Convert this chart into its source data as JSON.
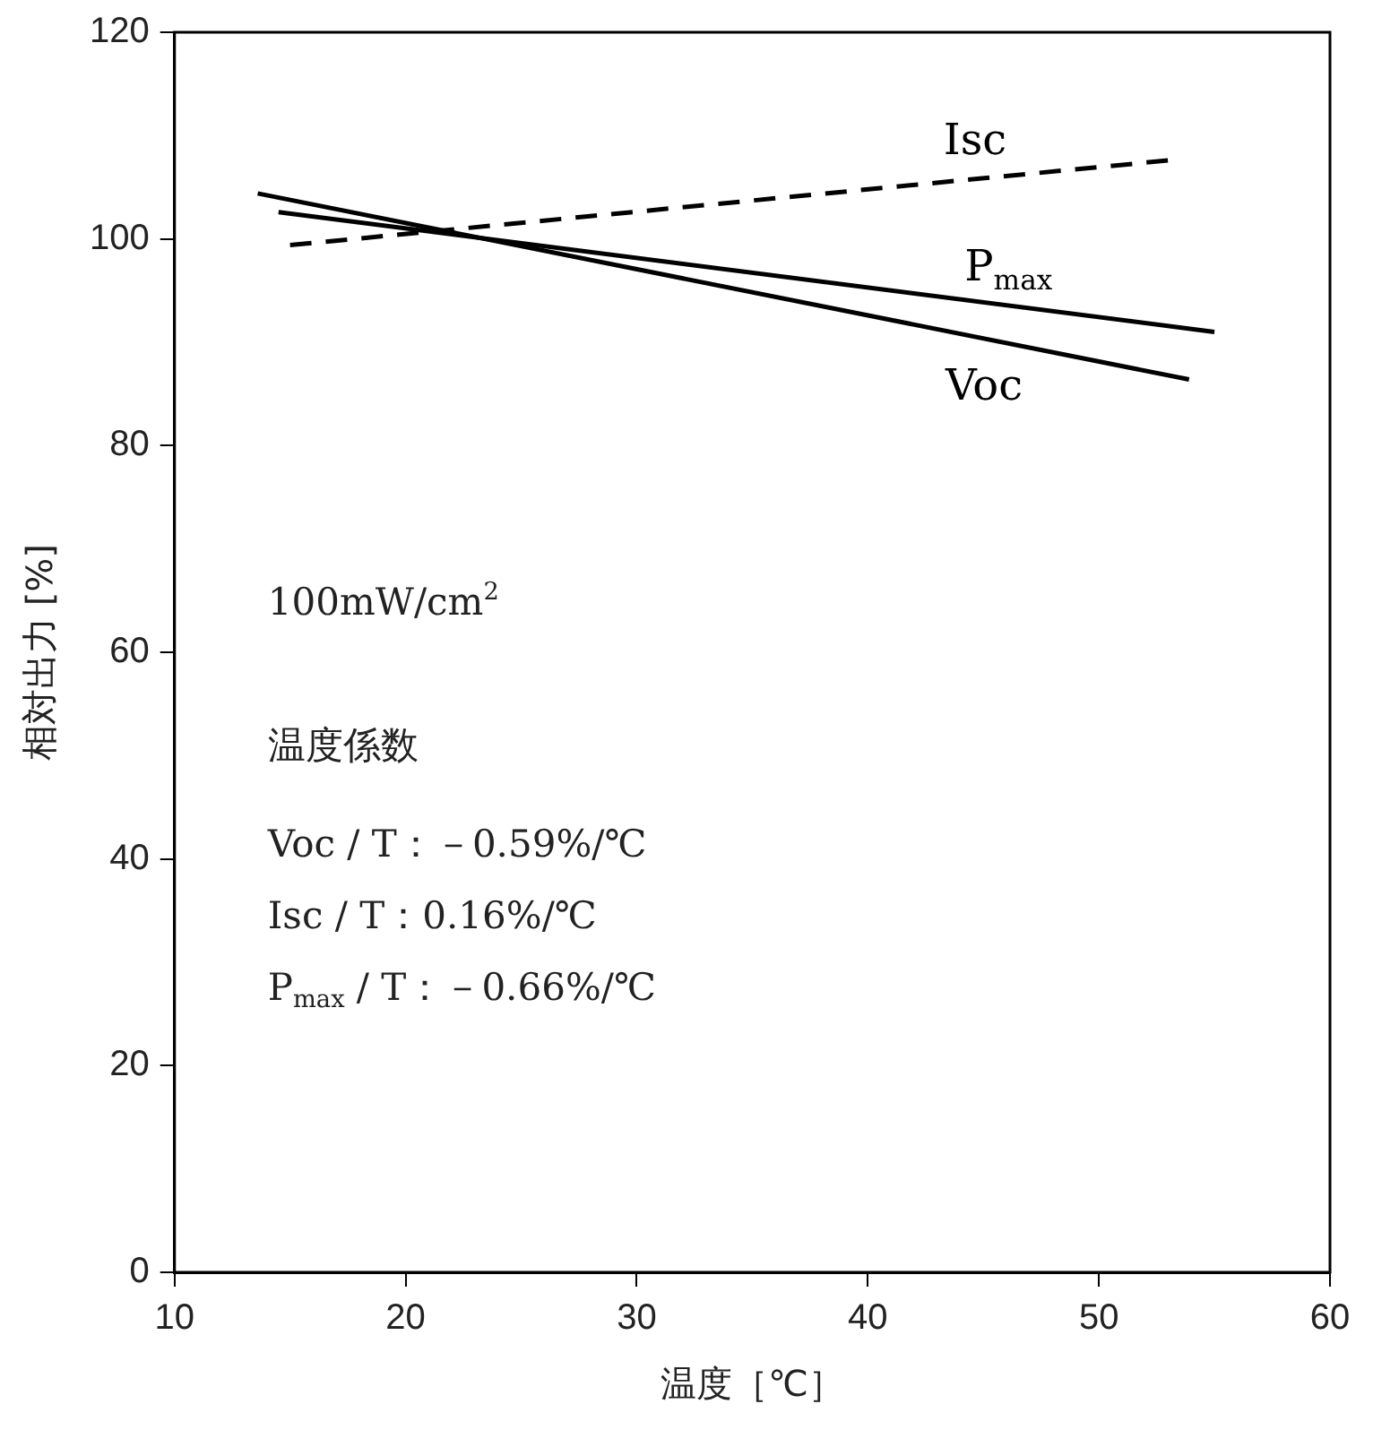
{
  "chart_data": {
    "type": "line",
    "xlabel": "温度［℃］",
    "ylabel": "相対出力 [%]",
    "xlim": [
      10,
      60
    ],
    "xticks": [
      10,
      20,
      30,
      40,
      50,
      60
    ],
    "ylim": [
      0,
      120
    ],
    "yticks": [
      0,
      20,
      40,
      60,
      80,
      100,
      120
    ],
    "grid": false,
    "legend": false,
    "marker": "none",
    "series": [
      {
        "name": "Isc",
        "color": "#000000",
        "x": [
          15,
          53
        ],
        "values": [
          99.4,
          107.6
        ],
        "line_style": "dashed"
      },
      {
        "name": "P$_{max}$",
        "color": "#000000",
        "x": [
          14.5,
          55
        ],
        "values": [
          102.6,
          91
        ]
      },
      {
        "name": "Voc",
        "color": "#000000",
        "x": [
          13.6,
          53.9
        ],
        "values": [
          104.4,
          86.4
        ]
      }
    ],
    "annotations": [
      "100mW/cm$^{2}$",
      "温度係数",
      "Voc / T：－0.59%/℃",
      "Isc / T：0.16%/℃",
      "P$_{max}$ / T：－0.66%/℃"
    ]
  }
}
